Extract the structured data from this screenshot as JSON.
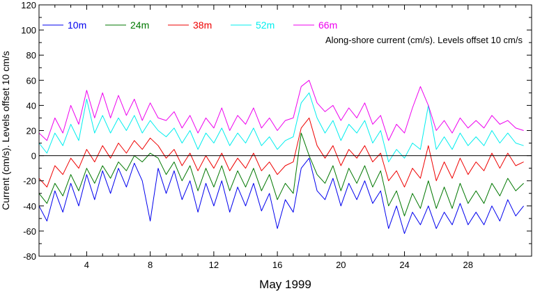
{
  "chart_data": {
    "type": "line",
    "title": "",
    "xlabel": "May 1999",
    "ylabel": "Current (cm/s). Levels offset 10 cm/s",
    "annotation": "Along-shore current (cm/s). Levels offset 10 cm/s",
    "xlim": [
      1,
      32
    ],
    "ylim": [
      -80,
      120
    ],
    "xticks": [
      4,
      8,
      12,
      16,
      20,
      24,
      28
    ],
    "yticks": [
      -80,
      -60,
      -40,
      -20,
      0,
      20,
      40,
      60,
      80,
      100,
      120
    ],
    "grid": false,
    "legend": "top-left, horizontal",
    "zero_line": true,
    "series": [
      {
        "name": "10m",
        "color": "#0000ee",
        "x": [
          1.0,
          1.5,
          2.0,
          2.5,
          3.0,
          3.5,
          4.0,
          4.5,
          5.0,
          5.5,
          6.0,
          6.5,
          7.0,
          7.5,
          8.0,
          8.5,
          9.0,
          9.5,
          10.0,
          10.5,
          11.0,
          11.5,
          12.0,
          12.5,
          13.0,
          13.5,
          14.0,
          14.5,
          15.0,
          15.5,
          16.0,
          16.5,
          17.0,
          17.5,
          18.0,
          18.5,
          19.0,
          19.5,
          20.0,
          20.5,
          21.0,
          21.5,
          22.0,
          22.5,
          23.0,
          23.5,
          24.0,
          24.5,
          25.0,
          25.5,
          26.0,
          26.5,
          27.0,
          27.5,
          28.0,
          28.5,
          29.0,
          29.5,
          30.0,
          30.5,
          31.0,
          31.5
        ],
        "y": [
          -40,
          -52,
          -28,
          -45,
          -22,
          -40,
          -15,
          -35,
          -12,
          -30,
          -10,
          -25,
          -6,
          -20,
          -52,
          -10,
          -30,
          -12,
          -35,
          -20,
          -45,
          -22,
          -40,
          -20,
          -45,
          -25,
          -40,
          -22,
          -44,
          -30,
          -58,
          -35,
          -45,
          -10,
          -2,
          -28,
          -35,
          -18,
          -40,
          -22,
          -35,
          -20,
          -38,
          -28,
          -58,
          -40,
          -62,
          -45,
          -55,
          -40,
          -58,
          -45,
          -55,
          -38,
          -55,
          -45,
          -55,
          -40,
          -52,
          -35,
          -48,
          -40
        ]
      },
      {
        "name": "24m",
        "color": "#007700",
        "x": [
          1.0,
          1.5,
          2.0,
          2.5,
          3.0,
          3.5,
          4.0,
          4.5,
          5.0,
          5.5,
          6.0,
          6.5,
          7.0,
          7.5,
          8.0,
          8.5,
          9.0,
          9.5,
          10.0,
          10.5,
          11.0,
          11.5,
          12.0,
          12.5,
          13.0,
          13.5,
          14.0,
          14.5,
          15.0,
          15.5,
          16.0,
          16.5,
          17.0,
          17.5,
          18.0,
          18.5,
          19.0,
          19.5,
          20.0,
          20.5,
          21.0,
          21.5,
          22.0,
          22.5,
          23.0,
          23.5,
          24.0,
          24.5,
          25.0,
          25.5,
          26.0,
          26.5,
          27.0,
          27.5,
          28.0,
          28.5,
          29.0,
          29.5,
          30.0,
          30.5,
          31.0,
          31.5
        ],
        "y": [
          -30,
          -38,
          -22,
          -32,
          -15,
          -28,
          -10,
          -22,
          -8,
          -18,
          -5,
          -12,
          0,
          -5,
          2,
          -2,
          -15,
          -5,
          -20,
          -8,
          -28,
          -10,
          -25,
          -8,
          -28,
          -12,
          -25,
          -10,
          -28,
          -15,
          -35,
          -22,
          -30,
          18,
          0,
          -15,
          -22,
          -8,
          -28,
          -10,
          -22,
          -8,
          -25,
          -12,
          -40,
          -28,
          -48,
          -30,
          -42,
          -20,
          -42,
          -25,
          -42,
          -22,
          -38,
          -28,
          -38,
          -22,
          -32,
          -18,
          -28,
          -22
        ]
      },
      {
        "name": "38m",
        "color": "#ee0000",
        "x": [
          1.0,
          1.5,
          2.0,
          2.5,
          3.0,
          3.5,
          4.0,
          4.5,
          5.0,
          5.5,
          6.0,
          6.5,
          7.0,
          7.5,
          8.0,
          8.5,
          9.0,
          9.5,
          10.0,
          10.5,
          11.0,
          11.5,
          12.0,
          12.5,
          13.0,
          13.5,
          14.0,
          14.5,
          15.0,
          15.5,
          16.0,
          16.5,
          17.0,
          17.5,
          18.0,
          18.5,
          19.0,
          19.5,
          20.0,
          20.5,
          21.0,
          21.5,
          22.0,
          22.5,
          23.0,
          23.5,
          24.0,
          24.5,
          25.0,
          25.5,
          26.0,
          26.5,
          27.0,
          27.5,
          28.0,
          28.5,
          29.0,
          29.5,
          30.0,
          30.5,
          31.0,
          31.5
        ],
        "y": [
          -18,
          -25,
          -8,
          -15,
          -2,
          -10,
          5,
          -5,
          8,
          -2,
          10,
          2,
          12,
          5,
          14,
          8,
          -2,
          5,
          -8,
          2,
          -12,
          0,
          -10,
          2,
          -12,
          -2,
          -10,
          2,
          -12,
          -5,
          -15,
          -8,
          -5,
          22,
          30,
          8,
          -2,
          8,
          -8,
          5,
          -2,
          8,
          -5,
          2,
          -20,
          -12,
          -25,
          -10,
          -18,
          8,
          -20,
          -5,
          -18,
          -2,
          -15,
          -5,
          -12,
          2,
          -10,
          2,
          -8,
          -5
        ]
      },
      {
        "name": "52m",
        "color": "#00eeee",
        "x": [
          1.0,
          1.5,
          2.0,
          2.5,
          3.0,
          3.5,
          4.0,
          4.5,
          5.0,
          5.5,
          6.0,
          6.5,
          7.0,
          7.5,
          8.0,
          8.5,
          9.0,
          9.5,
          10.0,
          10.5,
          11.0,
          11.5,
          12.0,
          12.5,
          13.0,
          13.5,
          14.0,
          14.5,
          15.0,
          15.5,
          16.0,
          16.5,
          17.0,
          17.5,
          18.0,
          18.5,
          19.0,
          19.5,
          20.0,
          20.5,
          21.0,
          21.5,
          22.0,
          22.5,
          23.0,
          23.5,
          24.0,
          24.5,
          25.0,
          25.5,
          26.0,
          26.5,
          27.0,
          27.5,
          28.0,
          28.5,
          29.0,
          29.5,
          30.0,
          30.5,
          31.0,
          31.5
        ],
        "y": [
          10,
          2,
          18,
          8,
          25,
          12,
          45,
          18,
          32,
          18,
          30,
          20,
          32,
          18,
          28,
          20,
          15,
          22,
          10,
          20,
          5,
          18,
          10,
          22,
          8,
          18,
          10,
          22,
          8,
          15,
          5,
          12,
          15,
          42,
          50,
          30,
          18,
          28,
          12,
          25,
          18,
          28,
          10,
          20,
          -5,
          5,
          -2,
          10,
          5,
          40,
          5,
          15,
          5,
          18,
          8,
          15,
          8,
          20,
          10,
          18,
          10,
          8
        ]
      },
      {
        "name": "66m",
        "color": "#ee00ee",
        "x": [
          1.0,
          1.5,
          2.0,
          2.5,
          3.0,
          3.5,
          4.0,
          4.5,
          5.0,
          5.5,
          6.0,
          6.5,
          7.0,
          7.5,
          8.0,
          8.5,
          9.0,
          9.5,
          10.0,
          10.5,
          11.0,
          11.5,
          12.0,
          12.5,
          13.0,
          13.5,
          14.0,
          14.5,
          15.0,
          15.5,
          16.0,
          16.5,
          17.0,
          17.5,
          18.0,
          18.5,
          19.0,
          19.5,
          20.0,
          20.5,
          21.0,
          21.5,
          22.0,
          22.5,
          23.0,
          23.5,
          24.0,
          24.5,
          25.0,
          25.5,
          26.0,
          26.5,
          27.0,
          27.5,
          28.0,
          28.5,
          29.0,
          29.5,
          30.0,
          30.5,
          31.0,
          31.5
        ],
        "y": [
          18,
          12,
          30,
          18,
          40,
          25,
          52,
          30,
          50,
          30,
          48,
          32,
          45,
          28,
          42,
          30,
          28,
          35,
          22,
          32,
          18,
          30,
          22,
          38,
          20,
          32,
          25,
          38,
          22,
          30,
          20,
          28,
          30,
          55,
          60,
          42,
          35,
          40,
          28,
          38,
          30,
          42,
          25,
          32,
          12,
          25,
          18,
          38,
          55,
          40,
          20,
          28,
          18,
          30,
          22,
          28,
          22,
          32,
          25,
          28,
          22,
          20
        ]
      }
    ]
  }
}
